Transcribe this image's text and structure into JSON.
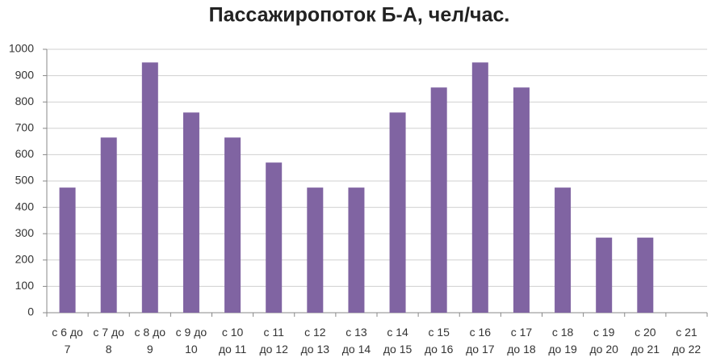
{
  "chart_data": {
    "type": "bar",
    "title": "Пассажиропоток Б-А, чел/час.",
    "categories": [
      "с 6 до 7",
      "с 7 до 8",
      "с 8 до 9",
      "с 9 до 10",
      "с 10 до 11",
      "с 11 до 12",
      "с 12 до 13",
      "с 13 до 14",
      "с 14 до 15",
      "с 15 до 16",
      "с 16 до 17",
      "с 17 до 18",
      "с 18 до 19",
      "с 19 до 20",
      "с 20 до 21",
      "с 21 до 22"
    ],
    "values": [
      475,
      665,
      950,
      760,
      665,
      570,
      475,
      475,
      760,
      855,
      950,
      855,
      475,
      285,
      285,
      0
    ],
    "color": "#8064a2",
    "ylim": [
      0,
      1000
    ],
    "yticks": [
      0,
      100,
      200,
      300,
      400,
      500,
      600,
      700,
      800,
      900,
      1000
    ],
    "grid": true
  }
}
